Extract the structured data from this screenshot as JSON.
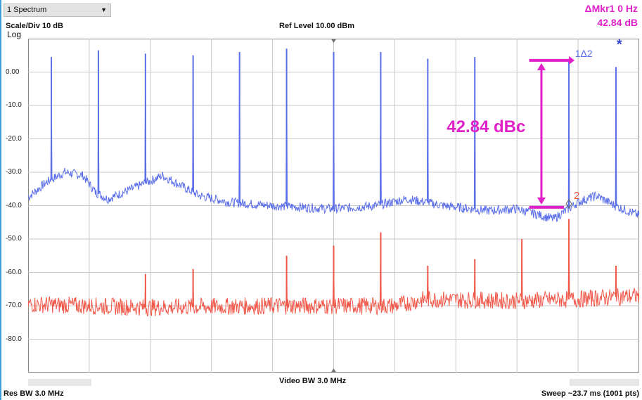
{
  "window": {
    "title": "1 Spectrum"
  },
  "header": {
    "scale_div": "Scale/Div 10 dB",
    "ref_level": "Ref Level 10.00 dBm",
    "scale_type": "Log",
    "marker_label": "ΔMkr1  0 Hz",
    "marker_value": "42.84 dB"
  },
  "footer": {
    "res_bw": "Res BW 3.0 MHz",
    "video_bw": "Video BW 3.0 MHz",
    "sweep": "Sweep ~23.7 ms (1001 pts)"
  },
  "annotations": {
    "dbc_label": "42.84 dBc",
    "marker1_label": "1Δ2",
    "marker2_label": "2",
    "trace_flag": "*"
  },
  "colors": {
    "trace_blue": "#5a6ee8",
    "trace_red": "#f0584a",
    "annotation_magenta": "#e020c8",
    "grid": "#c8c8c8"
  },
  "chart_data": {
    "type": "line",
    "y_tick_labels": [
      "0.00",
      "-10.0",
      "-20.0",
      "-30.0",
      "-40.0",
      "-50.0",
      "-60.0",
      "-70.0",
      "-80.0"
    ],
    "ylim": [
      -90,
      10
    ],
    "x_divisions": 10,
    "series": [
      {
        "color": "#5a6ee8",
        "floor_profile": [
          {
            "frac": 0.0,
            "y": -37.5
          },
          {
            "frac": 0.03,
            "y": -33
          },
          {
            "frac": 0.06,
            "y": -30
          },
          {
            "frac": 0.09,
            "y": -31
          },
          {
            "frac": 0.11,
            "y": -36
          },
          {
            "frac": 0.13,
            "y": -38
          },
          {
            "frac": 0.17,
            "y": -35
          },
          {
            "frac": 0.22,
            "y": -31
          },
          {
            "frac": 0.25,
            "y": -34
          },
          {
            "frac": 0.28,
            "y": -37
          },
          {
            "frac": 0.33,
            "y": -39
          },
          {
            "frac": 0.4,
            "y": -40
          },
          {
            "frac": 0.5,
            "y": -41
          },
          {
            "frac": 0.57,
            "y": -40
          },
          {
            "frac": 0.62,
            "y": -38
          },
          {
            "frac": 0.68,
            "y": -40
          },
          {
            "frac": 0.75,
            "y": -41.5
          },
          {
            "frac": 0.8,
            "y": -41
          },
          {
            "frac": 0.86,
            "y": -44
          },
          {
            "frac": 0.9,
            "y": -39
          },
          {
            "frac": 0.93,
            "y": -37
          },
          {
            "frac": 0.96,
            "y": -40
          },
          {
            "frac": 1.0,
            "y": -43
          }
        ],
        "spurs": [
          {
            "frac": 0.038,
            "y": 4.5
          },
          {
            "frac": 0.115,
            "y": 6.5
          },
          {
            "frac": 0.192,
            "y": 5.5
          },
          {
            "frac": 0.27,
            "y": 5
          },
          {
            "frac": 0.346,
            "y": 6
          },
          {
            "frac": 0.423,
            "y": 7
          },
          {
            "frac": 0.5,
            "y": 6
          },
          {
            "frac": 0.577,
            "y": 6
          },
          {
            "frac": 0.654,
            "y": 4
          },
          {
            "frac": 0.731,
            "y": 4.5
          },
          {
            "frac": 0.885,
            "y": 3.5
          },
          {
            "frac": 0.962,
            "y": 1.5
          }
        ]
      },
      {
        "color": "#f0584a",
        "floor_profile": [
          {
            "frac": 0.0,
            "y": -69.5
          },
          {
            "frac": 0.2,
            "y": -70.5
          },
          {
            "frac": 0.4,
            "y": -70
          },
          {
            "frac": 0.6,
            "y": -70
          },
          {
            "frac": 0.65,
            "y": -68
          },
          {
            "frac": 0.8,
            "y": -68.5
          },
          {
            "frac": 0.9,
            "y": -68
          },
          {
            "frac": 1.0,
            "y": -67
          }
        ],
        "spurs": [
          {
            "frac": 0.192,
            "y": -60.5
          },
          {
            "frac": 0.27,
            "y": -59
          },
          {
            "frac": 0.423,
            "y": -55
          },
          {
            "frac": 0.5,
            "y": -52
          },
          {
            "frac": 0.577,
            "y": -48
          },
          {
            "frac": 0.654,
            "y": -58
          },
          {
            "frac": 0.731,
            "y": -56
          },
          {
            "frac": 0.808,
            "y": -50
          },
          {
            "frac": 0.885,
            "y": -44
          },
          {
            "frac": 0.962,
            "y": -58
          }
        ]
      }
    ]
  }
}
